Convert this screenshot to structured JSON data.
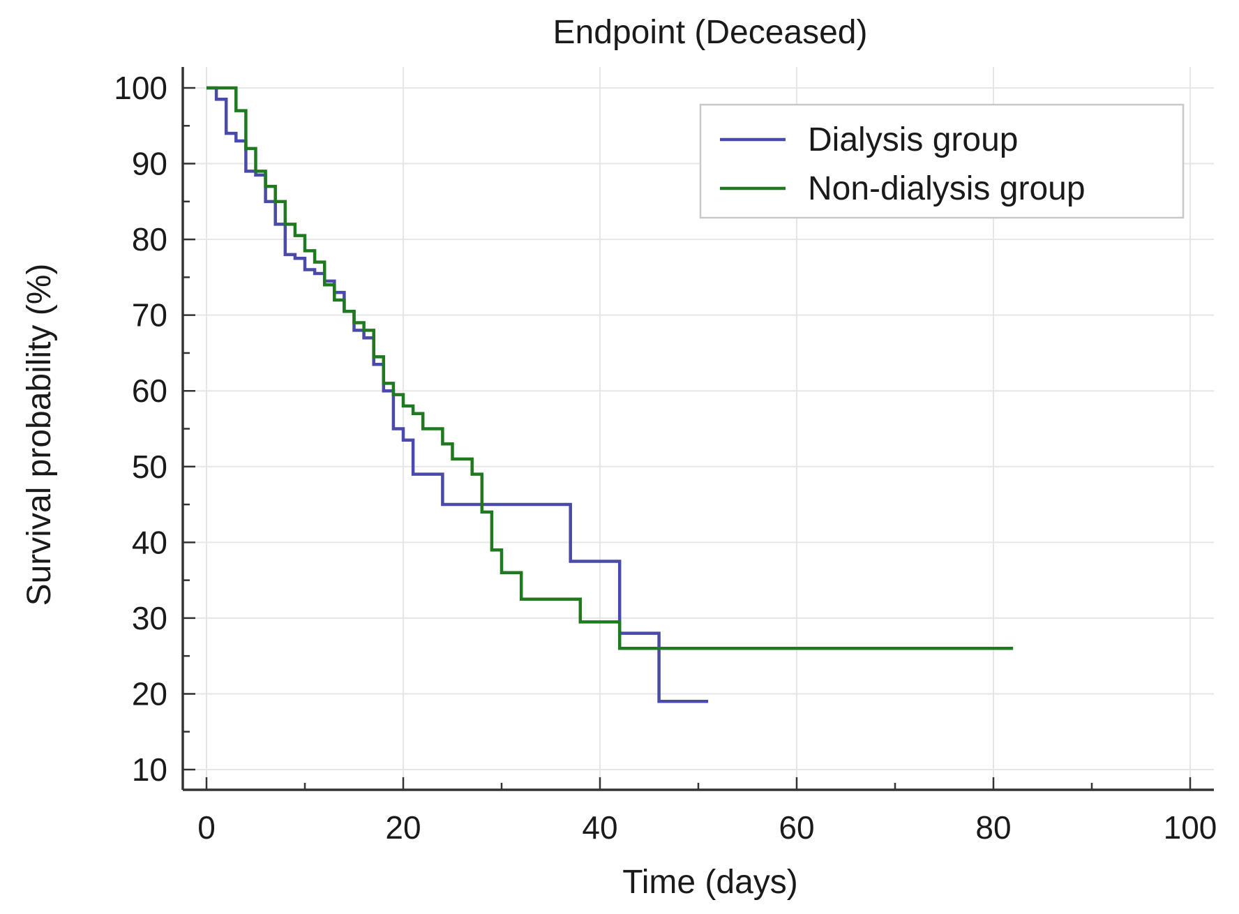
{
  "chart_data": {
    "type": "line",
    "step": true,
    "title": "Endpoint (Deceased)",
    "xlabel": "Time (days)",
    "ylabel": "Survival probability (%)",
    "xlim": [
      0,
      100
    ],
    "ylim": [
      10,
      100
    ],
    "xticks": [
      0,
      20,
      40,
      60,
      80,
      100
    ],
    "yticks": [
      10,
      20,
      30,
      40,
      50,
      60,
      70,
      80,
      90,
      100
    ],
    "grid": true,
    "legend_position": "top-right",
    "series": [
      {
        "name": "Dialysis group",
        "color": "#4a4aa8",
        "x": [
          0,
          1,
          2,
          3,
          4,
          5,
          6,
          7,
          8,
          9,
          10,
          11,
          12,
          13,
          14,
          15,
          16,
          17,
          18,
          19,
          20,
          21,
          24,
          37,
          42,
          46,
          51
        ],
        "y": [
          100,
          98.5,
          94,
          93,
          89,
          88.5,
          85,
          82,
          78,
          77.5,
          76,
          75.5,
          74.5,
          73,
          70.5,
          68,
          67,
          63.5,
          60,
          55,
          53.5,
          49,
          45,
          37.5,
          28,
          19,
          19
        ]
      },
      {
        "name": "Non-dialysis group",
        "color": "#1f7a1f",
        "x": [
          0,
          2,
          3,
          4,
          5,
          6,
          7,
          8,
          9,
          10,
          11,
          12,
          13,
          14,
          15,
          16,
          17,
          18,
          19,
          20,
          21,
          22,
          24,
          25,
          27,
          28,
          29,
          30,
          32,
          38,
          42,
          82
        ],
        "y": [
          100,
          100,
          97,
          92,
          89,
          87,
          85,
          82,
          80.5,
          78.5,
          77,
          74,
          72,
          70.5,
          69,
          68,
          64.5,
          61,
          59.5,
          58,
          57,
          55,
          53,
          51,
          49,
          44,
          39,
          36,
          32.5,
          29.5,
          26,
          26
        ]
      }
    ]
  }
}
